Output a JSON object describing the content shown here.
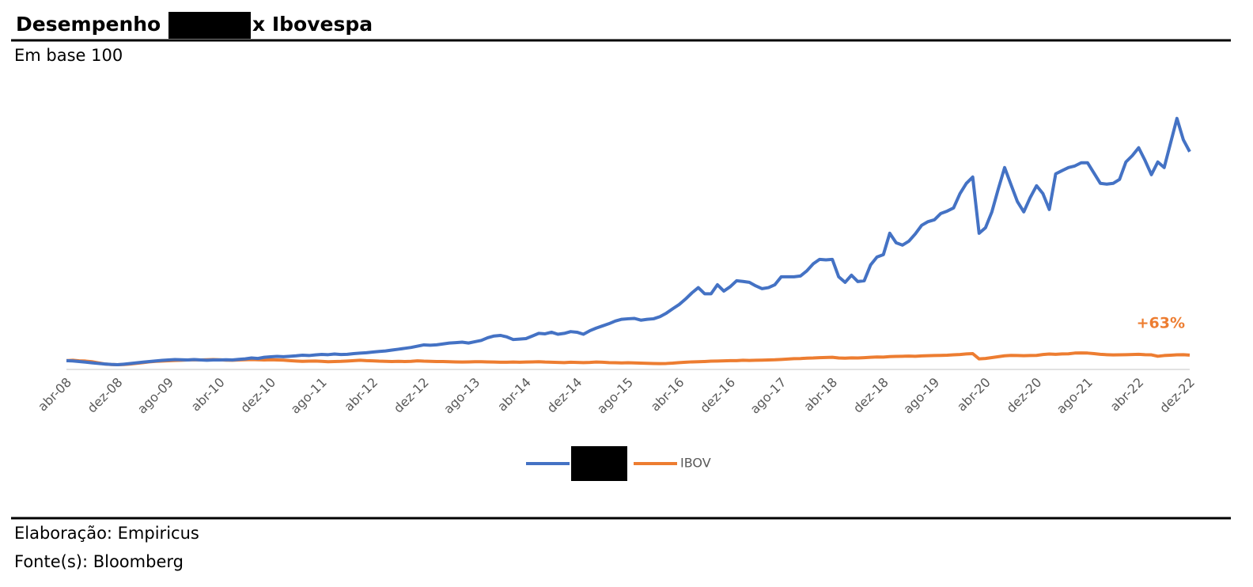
{
  "chart_data": {
    "type": "line",
    "title": [
      "Desempenho",
      "x Ibovespa"
    ],
    "subtitle": "Em base 100",
    "footer": [
      "Elaboração: Empiricus",
      "Fonte(s): Bloomberg"
    ],
    "annotation": {
      "text": "+63%",
      "series": 1,
      "index": 176
    },
    "categories": [
      "abr-08",
      null,
      null,
      null,
      null,
      null,
      null,
      null,
      "dez-08",
      null,
      null,
      null,
      null,
      null,
      null,
      null,
      "ago-09",
      null,
      null,
      null,
      null,
      null,
      null,
      null,
      "abr-10",
      null,
      null,
      null,
      null,
      null,
      null,
      null,
      "dez-10",
      null,
      null,
      null,
      null,
      null,
      null,
      null,
      "ago-11",
      null,
      null,
      null,
      null,
      null,
      null,
      null,
      "abr-12",
      null,
      null,
      null,
      null,
      null,
      null,
      null,
      "dez-12",
      null,
      null,
      null,
      null,
      null,
      null,
      null,
      "ago-13",
      null,
      null,
      null,
      null,
      null,
      null,
      null,
      "abr-14",
      null,
      null,
      null,
      null,
      null,
      null,
      null,
      "dez-14",
      null,
      null,
      null,
      null,
      null,
      null,
      null,
      "ago-15",
      null,
      null,
      null,
      null,
      null,
      null,
      null,
      "abr-16",
      null,
      null,
      null,
      null,
      null,
      null,
      null,
      "dez-16",
      null,
      null,
      null,
      null,
      null,
      null,
      null,
      "ago-17",
      null,
      null,
      null,
      null,
      null,
      null,
      null,
      "abr-18",
      null,
      null,
      null,
      null,
      null,
      null,
      null,
      "dez-18",
      null,
      null,
      null,
      null,
      null,
      null,
      null,
      "ago-19",
      null,
      null,
      null,
      null,
      null,
      null,
      null,
      "abr-20",
      null,
      null,
      null,
      null,
      null,
      null,
      null,
      "dez-20",
      null,
      null,
      null,
      null,
      null,
      null,
      null,
      "ago-21",
      null,
      null,
      null,
      null,
      null,
      null,
      null,
      "abr-22",
      null,
      null,
      null,
      null,
      null,
      null,
      null,
      "dez-22"
    ],
    "series": [
      {
        "color": "#4472c4",
        "values": [
          100,
          97,
          90,
          83,
          75,
          68,
          62,
          57,
          54,
          60,
          67,
          75,
          83,
          90,
          97,
          103,
          108,
          112,
          110,
          108,
          112,
          108,
          105,
          108,
          108,
          110,
          108,
          115,
          120,
          130,
          125,
          138,
          144,
          148,
          145,
          150,
          155,
          162,
          158,
          165,
          171,
          168,
          175,
          170,
          172,
          180,
          185,
          190,
          198,
          205,
          210,
          220,
          230,
          240,
          250,
          265,
          279,
          275,
          280,
          290,
          300,
          305,
          310,
          300,
          315,
          330,
          360,
          380,
          387,
          370,
          340,
          345,
          351,
          380,
          410,
          405,
          423,
          400,
          410,
          430,
          423,
          400,
          440,
          470,
          495,
          520,
          550,
          570,
          576,
          580,
          560,
          570,
          576,
          600,
          640,
          690,
          738,
          800,
          870,
          930,
          860,
          860,
          963,
          891,
          940,
          1008,
          1000,
          990,
          950,
          918,
          930,
          963,
          1053,
          1053,
          1053,
          1062,
          1120,
          1200,
          1251,
          1245,
          1251,
          1053,
          990,
          1071,
          999,
          1008,
          1188,
          1278,
          1305,
          1548,
          1440,
          1413,
          1458,
          1540,
          1638,
          1680,
          1701,
          1773,
          1800,
          1836,
          1998,
          2115,
          2187,
          1548,
          1611,
          1791,
          2050,
          2295,
          2100,
          1908,
          1791,
          1953,
          2088,
          1998,
          1818,
          2223,
          2260,
          2295,
          2313,
          2349,
          2349,
          2232,
          2115,
          2106,
          2115,
          2160,
          2358,
          2430,
          2520,
          2376,
          2214,
          2358,
          2295,
          2574,
          2853,
          2610,
          2475
        ]
      },
      {
        "name": "IBOV",
        "color": "#ed7d31",
        "values": [
          100,
          104,
          98,
          95,
          88,
          75,
          62,
          56,
          54,
          56,
          62,
          70,
          78,
          86,
          92,
          96,
          99,
          102,
          104,
          108,
          110,
          108,
          110,
          112,
          110,
          106,
          104,
          108,
          110,
          112,
          110,
          108,
          110,
          108,
          106,
          100,
          96,
          92,
          94,
          95,
          92,
          88,
          90,
          92,
          96,
          100,
          104,
          100,
          98,
          94,
          92,
          90,
          92,
          90,
          92,
          98,
          94,
          92,
          90,
          90,
          88,
          86,
          84,
          86,
          88,
          88,
          86,
          84,
          82,
          82,
          84,
          82,
          84,
          86,
          88,
          84,
          82,
          80,
          78,
          82,
          80,
          78,
          80,
          84,
          82,
          78,
          76,
          74,
          76,
          74,
          72,
          70,
          68,
          66,
          68,
          72,
          78,
          82,
          86,
          88,
          90,
          94,
          96,
          98,
          100,
          100,
          104,
          102,
          104,
          106,
          108,
          110,
          114,
          118,
          122,
          124,
          128,
          130,
          134,
          136,
          138,
          130,
          128,
          132,
          130,
          134,
          138,
          142,
          140,
          146,
          148,
          150,
          152,
          150,
          154,
          156,
          158,
          160,
          162,
          166,
          170,
          176,
          180,
          120,
          125,
          135,
          145,
          155,
          160,
          158,
          156,
          158,
          160,
          170,
          175,
          172,
          176,
          178,
          186,
          188,
          186,
          180,
          172,
          168,
          165,
          166,
          168,
          170,
          172,
          168,
          166,
          150,
          158,
          162,
          166,
          168,
          163
        ]
      }
    ],
    "ylim": [
      0,
      3300
    ],
    "legend": "bottom"
  }
}
